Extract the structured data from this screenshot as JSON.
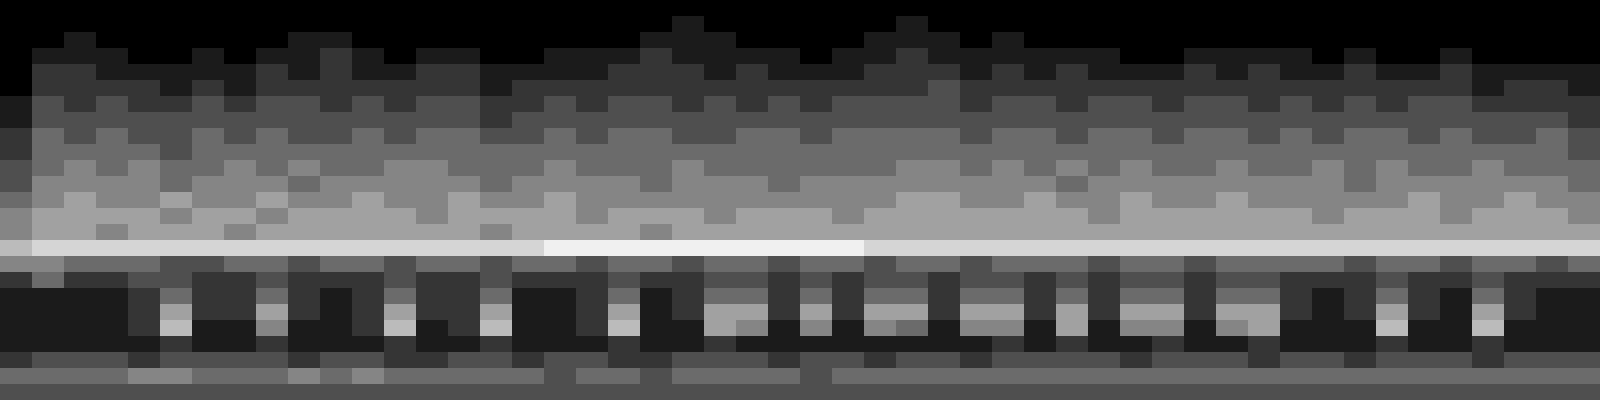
{
  "chart_data": {
    "type": "heatmap",
    "tick_labels": false,
    "cells": [
      [
        0,
        0,
        0,
        0,
        0,
        0,
        0,
        0,
        0,
        0,
        0,
        0,
        0,
        0,
        0,
        0,
        0,
        0,
        0,
        0,
        0,
        0,
        0,
        0,
        0,
        0,
        0,
        0,
        0,
        0,
        0,
        0,
        0,
        0,
        0,
        0,
        0,
        0,
        0,
        0,
        0,
        0,
        0,
        0,
        0,
        0,
        0,
        0,
        0,
        0
      ],
      [
        0,
        0,
        0,
        0,
        0,
        0,
        0,
        0,
        0,
        0,
        0,
        0,
        0,
        0,
        0,
        0,
        0,
        0,
        0,
        0,
        0,
        1,
        0,
        0,
        0,
        0,
        0,
        0,
        1,
        0,
        0,
        0,
        0,
        0,
        0,
        0,
        0,
        0,
        0,
        0,
        0,
        0,
        0,
        0,
        0,
        0,
        0,
        0,
        0,
        0
      ],
      [
        0,
        0,
        1,
        0,
        0,
        0,
        0,
        0,
        0,
        1,
        1,
        0,
        0,
        0,
        0,
        0,
        0,
        0,
        0,
        0,
        1,
        1,
        1,
        0,
        0,
        0,
        0,
        1,
        1,
        1,
        0,
        1,
        0,
        0,
        0,
        0,
        0,
        0,
        0,
        0,
        0,
        0,
        0,
        0,
        0,
        0,
        0,
        0,
        0,
        0
      ],
      [
        0,
        1,
        1,
        1,
        0,
        0,
        1,
        0,
        1,
        1,
        2,
        1,
        0,
        1,
        1,
        0,
        0,
        1,
        1,
        1,
        2,
        1,
        1,
        1,
        1,
        0,
        1,
        1,
        2,
        1,
        1,
        1,
        1,
        1,
        1,
        0,
        0,
        1,
        1,
        1,
        1,
        0,
        1,
        0,
        0,
        1,
        0,
        0,
        0,
        0
      ],
      [
        0,
        2,
        2,
        1,
        1,
        1,
        1,
        1,
        2,
        1,
        2,
        1,
        1,
        2,
        2,
        1,
        1,
        1,
        1,
        2,
        2,
        2,
        1,
        2,
        1,
        1,
        1,
        2,
        2,
        2,
        1,
        2,
        1,
        2,
        1,
        1,
        1,
        2,
        1,
        2,
        1,
        1,
        2,
        1,
        1,
        2,
        1,
        1,
        1,
        1
      ],
      [
        0,
        2,
        2,
        2,
        2,
        1,
        2,
        1,
        2,
        2,
        2,
        2,
        2,
        2,
        2,
        1,
        2,
        2,
        2,
        2,
        2,
        2,
        2,
        2,
        2,
        2,
        2,
        2,
        2,
        3,
        2,
        2,
        2,
        2,
        2,
        2,
        2,
        2,
        2,
        2,
        2,
        2,
        2,
        2,
        2,
        2,
        1,
        2,
        2,
        1
      ],
      [
        1,
        3,
        2,
        3,
        2,
        2,
        3,
        2,
        3,
        3,
        2,
        3,
        2,
        3,
        3,
        2,
        2,
        3,
        2,
        3,
        3,
        2,
        3,
        2,
        3,
        2,
        3,
        3,
        3,
        3,
        2,
        3,
        3,
        2,
        3,
        3,
        2,
        3,
        3,
        2,
        3,
        2,
        3,
        2,
        3,
        3,
        2,
        2,
        2,
        2
      ],
      [
        1,
        3,
        3,
        3,
        3,
        3,
        3,
        3,
        3,
        3,
        3,
        3,
        3,
        3,
        3,
        2,
        3,
        3,
        3,
        3,
        3,
        3,
        3,
        3,
        3,
        3,
        3,
        3,
        3,
        3,
        3,
        3,
        3,
        3,
        3,
        3,
        3,
        3,
        3,
        3,
        3,
        3,
        3,
        3,
        3,
        3,
        3,
        3,
        3,
        2
      ],
      [
        2,
        4,
        3,
        4,
        3,
        3,
        4,
        3,
        4,
        3,
        3,
        4,
        3,
        4,
        4,
        3,
        3,
        4,
        3,
        4,
        4,
        3,
        3,
        4,
        4,
        3,
        4,
        4,
        4,
        4,
        3,
        4,
        4,
        3,
        4,
        4,
        3,
        4,
        4,
        3,
        4,
        3,
        4,
        4,
        3,
        4,
        3,
        3,
        4,
        3
      ],
      [
        2,
        4,
        4,
        4,
        4,
        3,
        4,
        4,
        4,
        4,
        4,
        4,
        4,
        4,
        4,
        4,
        4,
        4,
        4,
        4,
        4,
        4,
        4,
        4,
        4,
        4,
        4,
        4,
        4,
        4,
        4,
        4,
        4,
        4,
        4,
        4,
        4,
        4,
        4,
        4,
        4,
        4,
        4,
        4,
        4,
        4,
        4,
        4,
        4,
        3
      ],
      [
        3,
        4,
        5,
        4,
        5,
        4,
        4,
        5,
        4,
        5,
        4,
        4,
        5,
        5,
        4,
        4,
        4,
        5,
        4,
        4,
        4,
        5,
        4,
        4,
        4,
        4,
        4,
        4,
        5,
        5,
        4,
        5,
        4,
        5,
        4,
        5,
        4,
        4,
        5,
        4,
        4,
        5,
        4,
        5,
        4,
        4,
        5,
        4,
        4,
        4
      ],
      [
        3,
        5,
        5,
        5,
        5,
        4,
        5,
        5,
        5,
        4,
        5,
        5,
        5,
        5,
        5,
        4,
        5,
        5,
        5,
        5,
        4,
        5,
        5,
        5,
        4,
        5,
        5,
        5,
        5,
        5,
        5,
        5,
        5,
        4,
        5,
        5,
        5,
        5,
        5,
        5,
        5,
        5,
        4,
        5,
        5,
        5,
        5,
        5,
        5,
        4
      ],
      [
        4,
        5,
        6,
        5,
        5,
        6,
        5,
        5,
        6,
        5,
        5,
        6,
        5,
        5,
        6,
        5,
        5,
        6,
        5,
        5,
        5,
        5,
        5,
        5,
        5,
        5,
        5,
        5,
        6,
        6,
        5,
        5,
        6,
        5,
        5,
        6,
        5,
        5,
        6,
        5,
        5,
        5,
        5,
        5,
        6,
        5,
        5,
        6,
        5,
        5
      ],
      [
        5,
        6,
        6,
        6,
        6,
        5,
        6,
        6,
        5,
        6,
        6,
        6,
        6,
        5,
        6,
        6,
        6,
        6,
        5,
        6,
        6,
        6,
        5,
        6,
        6,
        6,
        5,
        6,
        6,
        6,
        6,
        6,
        6,
        6,
        5,
        6,
        6,
        6,
        6,
        6,
        6,
        5,
        6,
        6,
        6,
        5,
        6,
        6,
        6,
        5
      ],
      [
        5,
        6,
        6,
        5,
        6,
        6,
        6,
        5,
        6,
        6,
        6,
        6,
        6,
        6,
        6,
        5,
        6,
        6,
        6,
        6,
        5,
        6,
        6,
        6,
        6,
        6,
        6,
        6,
        6,
        6,
        6,
        6,
        6,
        6,
        6,
        6,
        6,
        6,
        6,
        6,
        6,
        6,
        6,
        6,
        6,
        6,
        6,
        6,
        6,
        6
      ],
      [
        7,
        8,
        8,
        8,
        8,
        8,
        8,
        8,
        8,
        8,
        8,
        8,
        8,
        8,
        8,
        8,
        8,
        9,
        9,
        9,
        9,
        9,
        9,
        9,
        9,
        9,
        9,
        8,
        8,
        8,
        8,
        8,
        8,
        8,
        8,
        8,
        8,
        8,
        8,
        8,
        8,
        8,
        8,
        8,
        8,
        8,
        8,
        8,
        8,
        8
      ],
      [
        5,
        5,
        4,
        4,
        4,
        3,
        3,
        4,
        4,
        3,
        4,
        4,
        3,
        4,
        4,
        3,
        4,
        4,
        3,
        4,
        4,
        3,
        4,
        4,
        3,
        4,
        4,
        3,
        4,
        4,
        3,
        4,
        4,
        4,
        3,
        4,
        4,
        3,
        4,
        4,
        4,
        4,
        3,
        4,
        4,
        3,
        4,
        4,
        3,
        4
      ],
      [
        2,
        4,
        2,
        2,
        3,
        3,
        2,
        2,
        3,
        2,
        2,
        2,
        3,
        2,
        2,
        3,
        2,
        2,
        2,
        3,
        2,
        2,
        3,
        3,
        2,
        3,
        2,
        3,
        3,
        2,
        3,
        3,
        2,
        3,
        2,
        3,
        3,
        2,
        3,
        3,
        2,
        2,
        2,
        3,
        2,
        2,
        3,
        2,
        2,
        2
      ],
      [
        1,
        1,
        1,
        1,
        2,
        4,
        2,
        2,
        4,
        2,
        1,
        2,
        4,
        2,
        2,
        4,
        1,
        1,
        2,
        4,
        1,
        2,
        4,
        4,
        2,
        4,
        2,
        4,
        4,
        2,
        4,
        4,
        2,
        4,
        2,
        4,
        4,
        2,
        4,
        4,
        2,
        1,
        2,
        4,
        2,
        1,
        4,
        2,
        1,
        1
      ],
      [
        1,
        1,
        1,
        1,
        2,
        6,
        2,
        2,
        6,
        2,
        1,
        2,
        6,
        2,
        2,
        6,
        1,
        1,
        2,
        6,
        1,
        2,
        6,
        6,
        2,
        6,
        2,
        6,
        6,
        2,
        6,
        6,
        2,
        6,
        2,
        6,
        6,
        2,
        6,
        6,
        2,
        1,
        2,
        6,
        2,
        1,
        6,
        2,
        1,
        1
      ],
      [
        1,
        1,
        1,
        1,
        2,
        7,
        1,
        1,
        5,
        1,
        1,
        2,
        7,
        1,
        2,
        7,
        1,
        1,
        2,
        7,
        1,
        1,
        6,
        5,
        1,
        5,
        1,
        5,
        4,
        1,
        5,
        5,
        1,
        6,
        1,
        5,
        5,
        1,
        5,
        6,
        1,
        1,
        1,
        7,
        1,
        1,
        7,
        1,
        1,
        1
      ],
      [
        1,
        1,
        1,
        1,
        1,
        2,
        1,
        1,
        2,
        1,
        1,
        1,
        2,
        1,
        1,
        2,
        1,
        1,
        1,
        2,
        1,
        1,
        2,
        1,
        1,
        1,
        1,
        1,
        1,
        1,
        1,
        2,
        1,
        2,
        1,
        1,
        2,
        1,
        1,
        2,
        1,
        1,
        1,
        2,
        1,
        1,
        2,
        1,
        1,
        1
      ],
      [
        2,
        3,
        3,
        3,
        2,
        3,
        3,
        3,
        3,
        2,
        3,
        3,
        2,
        2,
        3,
        3,
        2,
        3,
        3,
        2,
        2,
        3,
        3,
        3,
        2,
        3,
        3,
        2,
        3,
        3,
        2,
        3,
        3,
        3,
        3,
        2,
        3,
        3,
        3,
        2,
        3,
        3,
        2,
        3,
        3,
        3,
        2,
        3,
        3,
        3
      ],
      [
        4,
        4,
        4,
        4,
        5,
        5,
        4,
        4,
        4,
        5,
        4,
        5,
        4,
        4,
        4,
        4,
        4,
        3,
        4,
        4,
        3,
        4,
        4,
        4,
        4,
        3,
        4,
        4,
        4,
        4,
        4,
        4,
        4,
        4,
        4,
        4,
        4,
        4,
        4,
        4,
        4,
        4,
        4,
        4,
        4,
        4,
        4,
        4,
        4,
        4
      ],
      [
        3,
        3,
        3,
        3,
        3,
        3,
        3,
        3,
        3,
        3,
        3,
        3,
        3,
        3,
        3,
        3,
        3,
        3,
        3,
        3,
        3,
        3,
        3,
        3,
        3,
        3,
        3,
        3,
        3,
        3,
        3,
        3,
        3,
        3,
        3,
        3,
        3,
        3,
        3,
        3,
        3,
        3,
        3,
        3,
        3,
        3,
        3,
        3,
        3,
        3
      ]
    ]
  }
}
